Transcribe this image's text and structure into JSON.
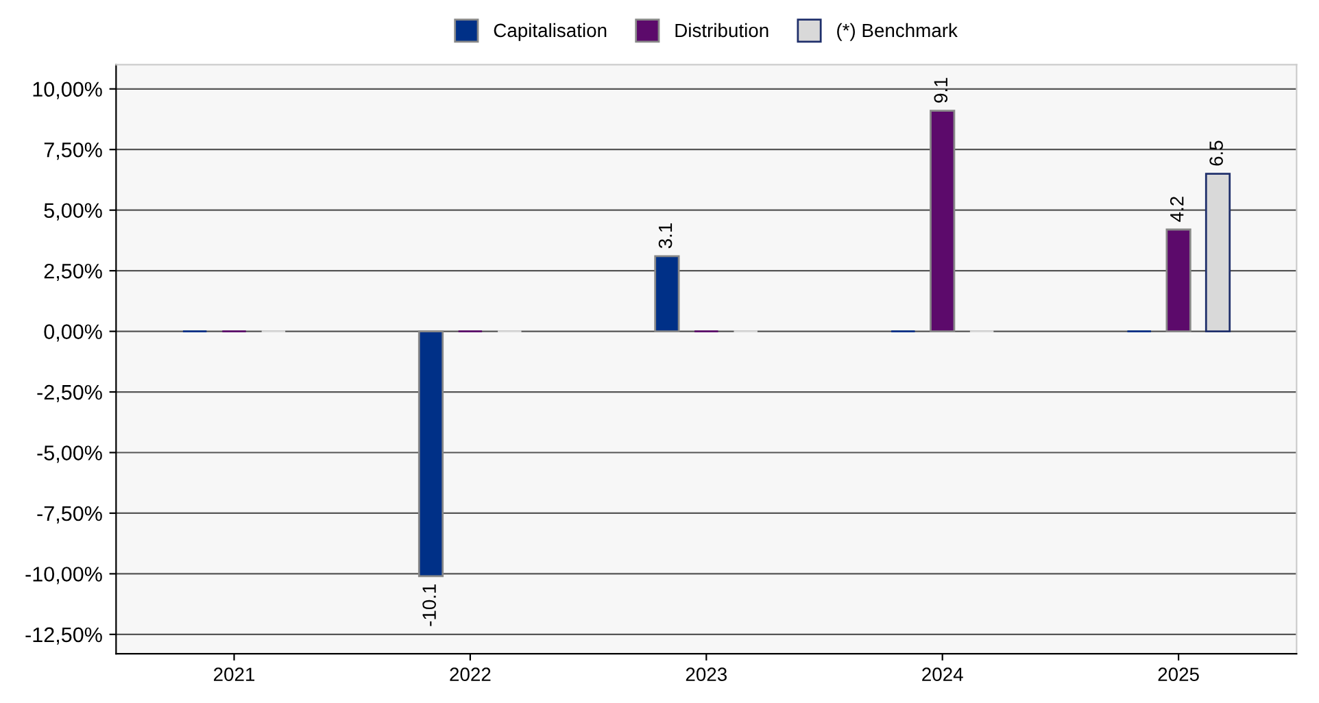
{
  "chart_data": {
    "type": "bar",
    "categories": [
      "2021",
      "2022",
      "2023",
      "2024",
      "2025"
    ],
    "series": [
      {
        "name": "Capitalisation",
        "color": "#003087",
        "values": [
          0,
          -10.1,
          3.1,
          0,
          0
        ],
        "value_labels": [
          null,
          "-10.1",
          "3.1",
          null,
          null
        ]
      },
      {
        "name": "Distribution",
        "color": "#5c0a6b",
        "values": [
          0,
          0,
          0,
          9.1,
          4.2
        ],
        "value_labels": [
          null,
          null,
          null,
          "9.1",
          "4.2"
        ]
      },
      {
        "name": "(*) Benchmark",
        "color": "#d9d9d9",
        "values": [
          0,
          0,
          0,
          0,
          6.5
        ],
        "value_labels": [
          null,
          null,
          null,
          null,
          "6.5"
        ]
      }
    ],
    "ylim": [
      -13.3,
      11.0
    ],
    "yticks": [
      {
        "value": -12.5,
        "label": "-12,50%"
      },
      {
        "value": -10,
        "label": "-10,00%"
      },
      {
        "value": -7.5,
        "label": "-7,50%"
      },
      {
        "value": -5,
        "label": "-5,00%"
      },
      {
        "value": -2.5,
        "label": "-2,50%"
      },
      {
        "value": 0,
        "label": "0,00%"
      },
      {
        "value": 2.5,
        "label": "2,50%"
      },
      {
        "value": 5,
        "label": "5,00%"
      },
      {
        "value": 7.5,
        "label": "7,50%"
      },
      {
        "value": 10,
        "label": "10,00%"
      }
    ],
    "grid": "y",
    "legend": "top"
  }
}
